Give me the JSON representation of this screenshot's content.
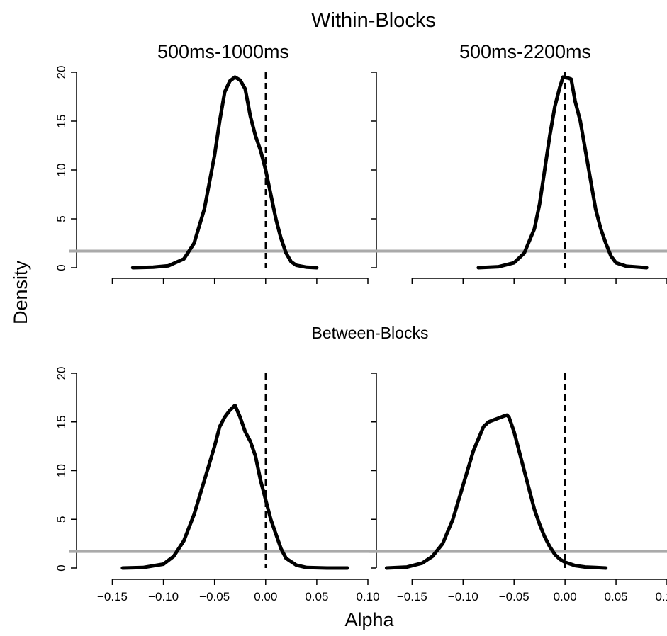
{
  "title": "Within-Blocks",
  "section_title": "Between-Blocks",
  "column_titles": [
    "500ms-1000ms",
    "500ms-2200ms"
  ],
  "ylabel": "Density",
  "xlabel": "Alpha",
  "x_tick_labels": [
    "−0.15",
    "−0.10",
    "−0.05",
    "0.00",
    "0.05",
    "0.10"
  ],
  "y_tick_labels": [
    "0",
    "5",
    "10",
    "15",
    "20"
  ],
  "colors": {
    "curve": "#000000",
    "reference_line": "#aaaaaa",
    "zero_line": "#000000"
  },
  "chart_data": [
    {
      "type": "line",
      "panel": "Within-Blocks 500ms-1000ms",
      "xlim": [
        -0.185,
        0.1
      ],
      "ylim": [
        0,
        20
      ],
      "x_ticks": [
        -0.15,
        -0.1,
        -0.05,
        0.0,
        0.05,
        0.1
      ],
      "y_ticks": [
        0,
        5,
        10,
        15,
        20
      ],
      "reference_y": 1.7,
      "reference_x": 0.0,
      "series": [
        {
          "values": [
            [
              -0.13,
              0.0
            ],
            [
              -0.11,
              0.05
            ],
            [
              -0.095,
              0.2
            ],
            [
              -0.08,
              0.9
            ],
            [
              -0.07,
              2.5
            ],
            [
              -0.06,
              6.0
            ],
            [
              -0.05,
              11.5
            ],
            [
              -0.045,
              15.0
            ],
            [
              -0.04,
              18.0
            ],
            [
              -0.035,
              19.1
            ],
            [
              -0.03,
              19.5
            ],
            [
              -0.025,
              19.2
            ],
            [
              -0.02,
              18.3
            ],
            [
              -0.015,
              15.5
            ],
            [
              -0.01,
              13.5
            ],
            [
              -0.005,
              12.0
            ],
            [
              0.0,
              10.0
            ],
            [
              0.005,
              7.5
            ],
            [
              0.01,
              5.0
            ],
            [
              0.015,
              3.0
            ],
            [
              0.02,
              1.5
            ],
            [
              0.025,
              0.6
            ],
            [
              0.03,
              0.25
            ],
            [
              0.04,
              0.05
            ],
            [
              0.05,
              0.0
            ]
          ]
        }
      ]
    },
    {
      "type": "line",
      "panel": "Within-Blocks 500ms-2200ms",
      "xlim": [
        -0.185,
        0.1
      ],
      "ylim": [
        0,
        20
      ],
      "x_ticks": [
        -0.15,
        -0.1,
        -0.05,
        0.0,
        0.05,
        0.1
      ],
      "y_ticks": [
        0,
        5,
        10,
        15,
        20
      ],
      "reference_y": 1.7,
      "reference_x": 0.0,
      "series": [
        {
          "values": [
            [
              -0.085,
              0.0
            ],
            [
              -0.065,
              0.1
            ],
            [
              -0.05,
              0.5
            ],
            [
              -0.04,
              1.5
            ],
            [
              -0.03,
              4.0
            ],
            [
              -0.025,
              6.5
            ],
            [
              -0.02,
              10.0
            ],
            [
              -0.015,
              13.5
            ],
            [
              -0.01,
              16.5
            ],
            [
              -0.005,
              18.5
            ],
            [
              -0.002,
              19.5
            ],
            [
              0.003,
              19.4
            ],
            [
              0.006,
              19.3
            ],
            [
              0.01,
              17.0
            ],
            [
              0.015,
              15.0
            ],
            [
              0.02,
              12.0
            ],
            [
              0.025,
              9.0
            ],
            [
              0.03,
              6.0
            ],
            [
              0.035,
              4.0
            ],
            [
              0.04,
              2.5
            ],
            [
              0.045,
              1.2
            ],
            [
              0.05,
              0.5
            ],
            [
              0.06,
              0.15
            ],
            [
              0.08,
              0.0
            ]
          ]
        }
      ]
    },
    {
      "type": "line",
      "panel": "Between-Blocks 500ms-1000ms",
      "xlim": [
        -0.185,
        0.1
      ],
      "ylim": [
        0,
        20
      ],
      "x_ticks": [
        -0.15,
        -0.1,
        -0.05,
        0.0,
        0.05,
        0.1
      ],
      "y_ticks": [
        0,
        5,
        10,
        15,
        20
      ],
      "reference_y": 1.7,
      "reference_x": 0.0,
      "series": [
        {
          "values": [
            [
              -0.14,
              0.0
            ],
            [
              -0.12,
              0.05
            ],
            [
              -0.1,
              0.4
            ],
            [
              -0.09,
              1.2
            ],
            [
              -0.08,
              2.8
            ],
            [
              -0.07,
              5.5
            ],
            [
              -0.06,
              9.0
            ],
            [
              -0.05,
              12.5
            ],
            [
              -0.045,
              14.5
            ],
            [
              -0.04,
              15.5
            ],
            [
              -0.035,
              16.2
            ],
            [
              -0.03,
              16.7
            ],
            [
              -0.025,
              15.5
            ],
            [
              -0.02,
              14.0
            ],
            [
              -0.015,
              13.0
            ],
            [
              -0.01,
              11.5
            ],
            [
              -0.005,
              9.0
            ],
            [
              0.0,
              7.0
            ],
            [
              0.005,
              5.0
            ],
            [
              0.01,
              3.5
            ],
            [
              0.015,
              2.0
            ],
            [
              0.02,
              1.0
            ],
            [
              0.03,
              0.3
            ],
            [
              0.04,
              0.05
            ],
            [
              0.06,
              0.0
            ],
            [
              0.08,
              0.0
            ]
          ]
        }
      ]
    },
    {
      "type": "line",
      "panel": "Between-Blocks 500ms-2200ms",
      "xlim": [
        -0.185,
        0.1
      ],
      "ylim": [
        0,
        20
      ],
      "x_ticks": [
        -0.15,
        -0.1,
        -0.05,
        0.0,
        0.05,
        0.1
      ],
      "y_ticks": [
        0,
        5,
        10,
        15,
        20
      ],
      "reference_y": 1.7,
      "reference_x": 0.0,
      "series": [
        {
          "values": [
            [
              -0.175,
              0.0
            ],
            [
              -0.155,
              0.1
            ],
            [
              -0.14,
              0.5
            ],
            [
              -0.13,
              1.2
            ],
            [
              -0.12,
              2.5
            ],
            [
              -0.11,
              5.0
            ],
            [
              -0.1,
              8.5
            ],
            [
              -0.09,
              12.0
            ],
            [
              -0.08,
              14.5
            ],
            [
              -0.075,
              15.0
            ],
            [
              -0.07,
              15.2
            ],
            [
              -0.065,
              15.4
            ],
            [
              -0.06,
              15.6
            ],
            [
              -0.057,
              15.7
            ],
            [
              -0.055,
              15.5
            ],
            [
              -0.05,
              14.0
            ],
            [
              -0.045,
              12.0
            ],
            [
              -0.04,
              10.0
            ],
            [
              -0.035,
              8.0
            ],
            [
              -0.03,
              6.0
            ],
            [
              -0.025,
              4.5
            ],
            [
              -0.02,
              3.2
            ],
            [
              -0.015,
              2.2
            ],
            [
              -0.01,
              1.4
            ],
            [
              -0.005,
              0.9
            ],
            [
              0.0,
              0.6
            ],
            [
              0.01,
              0.25
            ],
            [
              0.02,
              0.1
            ],
            [
              0.03,
              0.05
            ],
            [
              0.04,
              0.0
            ]
          ]
        }
      ]
    }
  ]
}
